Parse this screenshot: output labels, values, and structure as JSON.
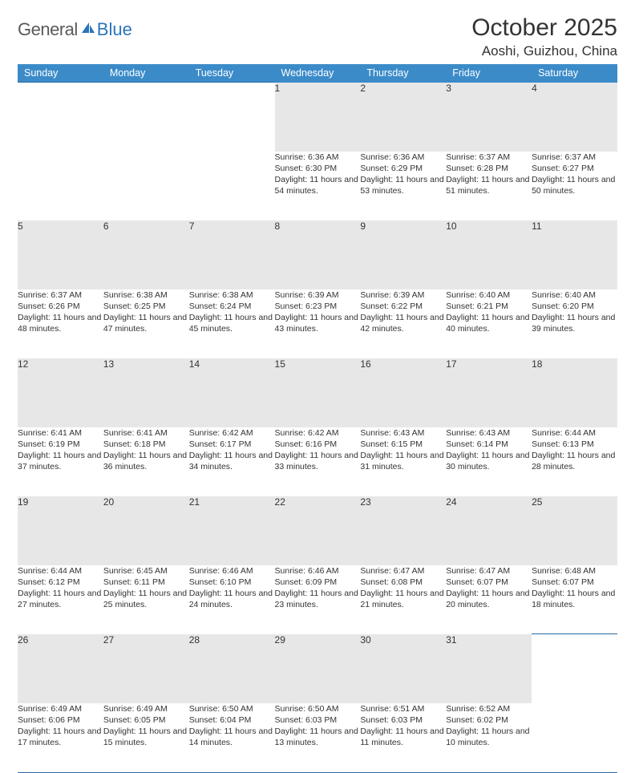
{
  "brand": {
    "general": "General",
    "blue": "Blue",
    "icon_color": "#2a75bb"
  },
  "title": "October 2025",
  "location": "Aoshi, Guizhou, China",
  "header_bg": "#3b8bc9",
  "header_fg": "#ffffff",
  "daynum_bg": "#e7e7e7",
  "rule_color": "#2a6aa5",
  "text_color": "#333333",
  "font_family": "Arial, Helvetica, sans-serif",
  "day_labels": [
    "Sunday",
    "Monday",
    "Tuesday",
    "Wednesday",
    "Thursday",
    "Friday",
    "Saturday"
  ],
  "weeks": [
    {
      "nums": [
        "",
        "",
        "",
        "1",
        "2",
        "3",
        "4"
      ],
      "detail": [
        "",
        "",
        "",
        "Sunrise: 6:36 AM\nSunset: 6:30 PM\nDaylight: 11 hours and 54 minutes.",
        "Sunrise: 6:36 AM\nSunset: 6:29 PM\nDaylight: 11 hours and 53 minutes.",
        "Sunrise: 6:37 AM\nSunset: 6:28 PM\nDaylight: 11 hours and 51 minutes.",
        "Sunrise: 6:37 AM\nSunset: 6:27 PM\nDaylight: 11 hours and 50 minutes."
      ]
    },
    {
      "nums": [
        "5",
        "6",
        "7",
        "8",
        "9",
        "10",
        "11"
      ],
      "detail": [
        "Sunrise: 6:37 AM\nSunset: 6:26 PM\nDaylight: 11 hours and 48 minutes.",
        "Sunrise: 6:38 AM\nSunset: 6:25 PM\nDaylight: 11 hours and 47 minutes.",
        "Sunrise: 6:38 AM\nSunset: 6:24 PM\nDaylight: 11 hours and 45 minutes.",
        "Sunrise: 6:39 AM\nSunset: 6:23 PM\nDaylight: 11 hours and 43 minutes.",
        "Sunrise: 6:39 AM\nSunset: 6:22 PM\nDaylight: 11 hours and 42 minutes.",
        "Sunrise: 6:40 AM\nSunset: 6:21 PM\nDaylight: 11 hours and 40 minutes.",
        "Sunrise: 6:40 AM\nSunset: 6:20 PM\nDaylight: 11 hours and 39 minutes."
      ]
    },
    {
      "nums": [
        "12",
        "13",
        "14",
        "15",
        "16",
        "17",
        "18"
      ],
      "detail": [
        "Sunrise: 6:41 AM\nSunset: 6:19 PM\nDaylight: 11 hours and 37 minutes.",
        "Sunrise: 6:41 AM\nSunset: 6:18 PM\nDaylight: 11 hours and 36 minutes.",
        "Sunrise: 6:42 AM\nSunset: 6:17 PM\nDaylight: 11 hours and 34 minutes.",
        "Sunrise: 6:42 AM\nSunset: 6:16 PM\nDaylight: 11 hours and 33 minutes.",
        "Sunrise: 6:43 AM\nSunset: 6:15 PM\nDaylight: 11 hours and 31 minutes.",
        "Sunrise: 6:43 AM\nSunset: 6:14 PM\nDaylight: 11 hours and 30 minutes.",
        "Sunrise: 6:44 AM\nSunset: 6:13 PM\nDaylight: 11 hours and 28 minutes."
      ]
    },
    {
      "nums": [
        "19",
        "20",
        "21",
        "22",
        "23",
        "24",
        "25"
      ],
      "detail": [
        "Sunrise: 6:44 AM\nSunset: 6:12 PM\nDaylight: 11 hours and 27 minutes.",
        "Sunrise: 6:45 AM\nSunset: 6:11 PM\nDaylight: 11 hours and 25 minutes.",
        "Sunrise: 6:46 AM\nSunset: 6:10 PM\nDaylight: 11 hours and 24 minutes.",
        "Sunrise: 6:46 AM\nSunset: 6:09 PM\nDaylight: 11 hours and 23 minutes.",
        "Sunrise: 6:47 AM\nSunset: 6:08 PM\nDaylight: 11 hours and 21 minutes.",
        "Sunrise: 6:47 AM\nSunset: 6:07 PM\nDaylight: 11 hours and 20 minutes.",
        "Sunrise: 6:48 AM\nSunset: 6:07 PM\nDaylight: 11 hours and 18 minutes."
      ]
    },
    {
      "nums": [
        "26",
        "27",
        "28",
        "29",
        "30",
        "31",
        ""
      ],
      "detail": [
        "Sunrise: 6:49 AM\nSunset: 6:06 PM\nDaylight: 11 hours and 17 minutes.",
        "Sunrise: 6:49 AM\nSunset: 6:05 PM\nDaylight: 11 hours and 15 minutes.",
        "Sunrise: 6:50 AM\nSunset: 6:04 PM\nDaylight: 11 hours and 14 minutes.",
        "Sunrise: 6:50 AM\nSunset: 6:03 PM\nDaylight: 11 hours and 13 minutes.",
        "Sunrise: 6:51 AM\nSunset: 6:03 PM\nDaylight: 11 hours and 11 minutes.",
        "Sunrise: 6:52 AM\nSunset: 6:02 PM\nDaylight: 11 hours and 10 minutes.",
        ""
      ]
    }
  ]
}
